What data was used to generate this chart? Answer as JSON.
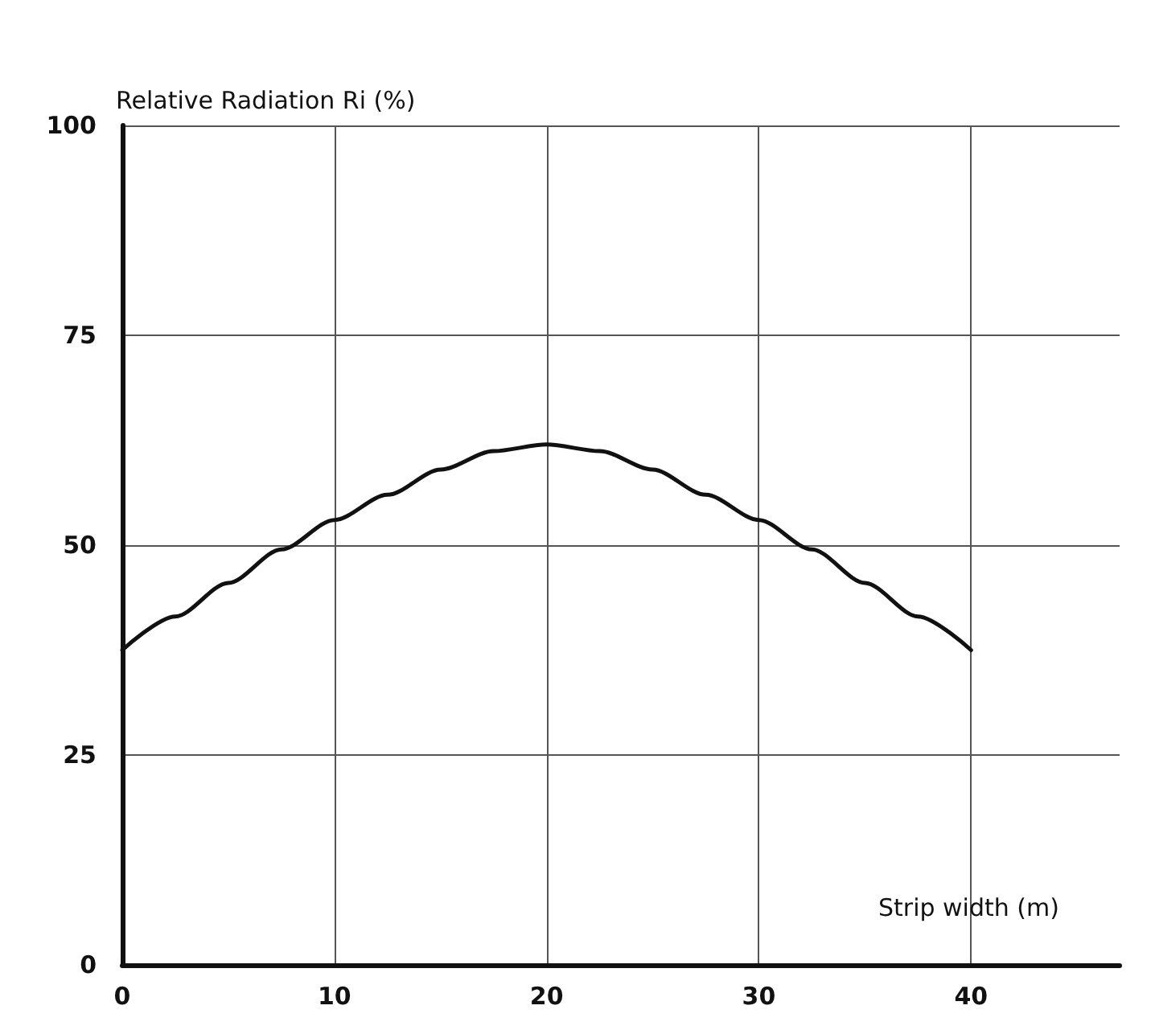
{
  "chart_data": {
    "type": "line",
    "xlabel": "Strip width (m)",
    "ylabel": "Relative Radiation Ri (%)",
    "x": [
      0,
      2.5,
      5,
      7.5,
      10,
      12.5,
      15,
      17.5,
      20,
      22.5,
      25,
      27.5,
      30,
      32.5,
      35,
      37.5,
      40
    ],
    "series": [
      {
        "color": "#111111",
        "values": [
          37.5,
          41.5,
          45.5,
          49.5,
          53,
          56,
          59,
          61.2,
          62,
          61.2,
          59,
          56,
          53,
          49.5,
          45.5,
          41.5,
          37.5
        ]
      }
    ],
    "xlim": [
      0,
      47
    ],
    "xticks": [
      0,
      10,
      20,
      30,
      40
    ],
    "ylim": [
      0,
      100
    ],
    "yticks": [
      0,
      25,
      50,
      75,
      100
    ],
    "grid": true,
    "marker": "none",
    "line_style": "solid"
  }
}
